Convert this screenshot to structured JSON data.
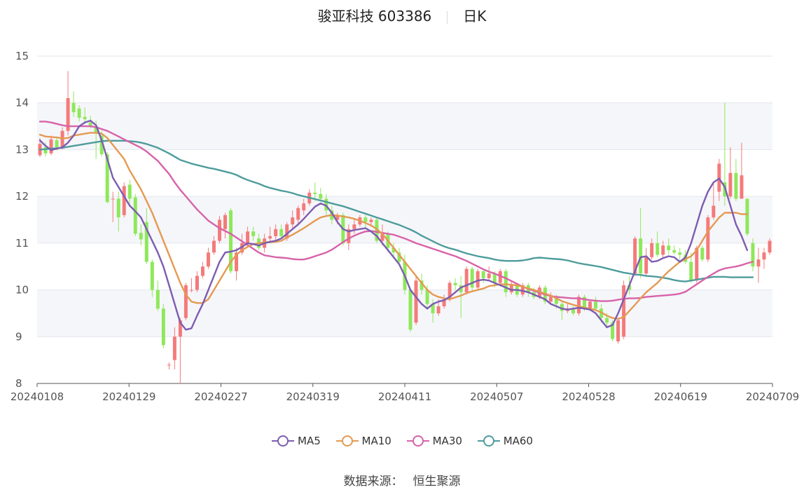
{
  "title": {
    "stock_name": "骏亚科技 603386",
    "period": "日K"
  },
  "source": {
    "label": "数据来源：",
    "value": "恒生聚源"
  },
  "colors": {
    "up": "#f47a7a",
    "down": "#8ee85a",
    "MA5": "#7d5cb0",
    "MA10": "#e49a52",
    "MA30": "#d862a8",
    "MA60": "#4e9c9c",
    "band": "#f5f6fa",
    "grid": "#e3e6ee"
  },
  "chart_data": {
    "type": "candlestick",
    "ylim": [
      8,
      15
    ],
    "yticks": [
      "8",
      "9",
      "10",
      "11",
      "12",
      "13",
      "14",
      "15"
    ],
    "xticks": [
      "20240108",
      "20240129",
      "20240227",
      "20240319",
      "20240411",
      "20240507",
      "20240528",
      "20240619",
      "20240709"
    ],
    "legend": [
      "MA5",
      "MA10",
      "MA30",
      "MA60"
    ],
    "legend_position": "bottom",
    "candles": [
      [
        12.88,
        13.12,
        12.84,
        13.25
      ],
      [
        13.05,
        12.92,
        12.85,
        13.15
      ],
      [
        12.92,
        13.22,
        12.88,
        13.3
      ],
      [
        13.2,
        13.05,
        12.98,
        13.28
      ],
      [
        13.05,
        13.4,
        13.0,
        13.48
      ],
      [
        13.4,
        14.1,
        13.3,
        14.68
      ],
      [
        14.0,
        13.8,
        13.7,
        14.25
      ],
      [
        13.88,
        13.68,
        13.6,
        13.95
      ],
      [
        13.7,
        13.65,
        13.55,
        13.9
      ],
      [
        13.58,
        13.5,
        13.45,
        13.72
      ],
      [
        13.5,
        13.35,
        12.8,
        13.62
      ],
      [
        13.3,
        12.9,
        12.85,
        13.4
      ],
      [
        12.9,
        11.88,
        11.85,
        12.95
      ],
      [
        11.95,
        11.95,
        11.45,
        12.1
      ],
      [
        11.95,
        11.55,
        11.25,
        12.1
      ],
      [
        11.6,
        12.22,
        11.55,
        12.3
      ],
      [
        12.25,
        11.95,
        11.85,
        12.35
      ],
      [
        11.98,
        11.2,
        11.15,
        12.05
      ],
      [
        11.22,
        11.08,
        10.95,
        11.4
      ],
      [
        11.45,
        10.6,
        10.55,
        11.75
      ],
      [
        10.6,
        10.0,
        9.85,
        10.65
      ],
      [
        10.0,
        9.6,
        9.55,
        10.2
      ],
      [
        9.6,
        8.82,
        8.75,
        9.7
      ],
      [
        8.4,
        8.4,
        8.3,
        8.45
      ],
      [
        8.5,
        9.0,
        8.3,
        9.2
      ],
      [
        9.0,
        9.35,
        8.0,
        9.4
      ],
      [
        9.4,
        10.1,
        9.35,
        10.15
      ],
      [
        10.0,
        10.0,
        9.95,
        10.25
      ],
      [
        10.0,
        10.3,
        9.95,
        10.4
      ],
      [
        10.3,
        10.5,
        10.25,
        10.6
      ],
      [
        10.5,
        10.8,
        10.45,
        10.9
      ],
      [
        10.8,
        11.05,
        10.75,
        11.15
      ],
      [
        11.05,
        11.5,
        11.0,
        11.58
      ],
      [
        11.3,
        11.6,
        11.1,
        11.65
      ],
      [
        11.7,
        10.4,
        10.35,
        11.75
      ],
      [
        10.4,
        10.8,
        10.2,
        10.9
      ],
      [
        10.8,
        11.0,
        10.75,
        11.2
      ],
      [
        11.0,
        11.25,
        10.9,
        11.35
      ],
      [
        11.25,
        11.15,
        11.05,
        11.35
      ],
      [
        11.1,
        10.9,
        10.85,
        11.2
      ],
      [
        10.9,
        11.1,
        10.8,
        11.2
      ],
      [
        11.1,
        11.15,
        11.0,
        11.35
      ],
      [
        11.15,
        11.3,
        11.05,
        11.4
      ],
      [
        11.3,
        11.15,
        11.1,
        11.4
      ],
      [
        11.1,
        11.4,
        11.05,
        11.45
      ],
      [
        11.4,
        11.55,
        11.3,
        11.7
      ],
      [
        11.5,
        11.75,
        11.4,
        11.8
      ],
      [
        11.7,
        11.85,
        11.6,
        11.95
      ],
      [
        11.85,
        12.08,
        11.8,
        12.15
      ],
      [
        12.08,
        12.05,
        11.9,
        12.3
      ],
      [
        12.05,
        11.95,
        11.9,
        12.18
      ],
      [
        11.95,
        11.7,
        11.6,
        12.05
      ],
      [
        11.7,
        11.5,
        11.4,
        11.8
      ],
      [
        11.5,
        11.6,
        11.4,
        11.65
      ],
      [
        11.6,
        11.0,
        10.95,
        11.65
      ],
      [
        11.0,
        11.3,
        10.85,
        11.4
      ],
      [
        11.3,
        11.4,
        11.2,
        11.5
      ],
      [
        11.4,
        11.55,
        11.35,
        11.6
      ],
      [
        11.55,
        11.45,
        11.3,
        11.6
      ],
      [
        11.45,
        11.5,
        11.35,
        11.55
      ],
      [
        11.5,
        11.05,
        11.0,
        11.55
      ],
      [
        11.05,
        11.2,
        10.95,
        11.4
      ],
      [
        11.2,
        10.9,
        10.8,
        11.25
      ],
      [
        10.9,
        10.8,
        10.7,
        11.0
      ],
      [
        10.8,
        10.6,
        10.55,
        10.9
      ],
      [
        10.6,
        10.0,
        9.9,
        10.75
      ],
      [
        10.0,
        9.15,
        9.1,
        10.05
      ],
      [
        9.3,
        10.2,
        9.25,
        10.3
      ],
      [
        10.2,
        10.0,
        9.9,
        10.35
      ],
      [
        10.0,
        9.7,
        9.6,
        10.1
      ],
      [
        9.7,
        9.5,
        9.3,
        9.8
      ],
      [
        9.5,
        9.65,
        9.45,
        9.8
      ],
      [
        9.65,
        9.8,
        9.6,
        9.9
      ],
      [
        9.8,
        10.15,
        9.75,
        10.2
      ],
      [
        10.15,
        10.1,
        10.0,
        10.25
      ],
      [
        10.1,
        9.95,
        9.4,
        10.3
      ],
      [
        9.95,
        10.45,
        9.9,
        10.5
      ],
      [
        10.45,
        10.05,
        10.0,
        10.5
      ],
      [
        10.05,
        10.4,
        10.0,
        10.45
      ],
      [
        10.4,
        10.25,
        10.15,
        10.45
      ],
      [
        10.25,
        10.35,
        10.2,
        10.5
      ],
      [
        10.35,
        10.15,
        10.05,
        10.4
      ],
      [
        10.15,
        10.4,
        10.1,
        10.45
      ],
      [
        10.4,
        9.95,
        9.85,
        10.45
      ],
      [
        9.95,
        10.1,
        9.9,
        10.2
      ],
      [
        10.1,
        9.9,
        9.85,
        10.15
      ],
      [
        9.9,
        10.1,
        9.85,
        10.15
      ],
      [
        10.1,
        9.95,
        9.85,
        10.15
      ],
      [
        9.95,
        9.85,
        9.8,
        10.05
      ],
      [
        9.85,
        10.05,
        9.8,
        10.1
      ],
      [
        10.05,
        9.75,
        9.7,
        10.1
      ],
      [
        9.75,
        9.85,
        9.7,
        9.95
      ],
      [
        9.85,
        9.7,
        9.6,
        9.9
      ],
      [
        9.7,
        9.55,
        9.35,
        9.75
      ],
      [
        9.55,
        9.6,
        9.5,
        9.7
      ],
      [
        9.6,
        9.5,
        9.45,
        9.65
      ],
      [
        9.5,
        9.85,
        9.45,
        9.9
      ],
      [
        9.85,
        9.6,
        9.55,
        9.9
      ],
      [
        9.6,
        9.75,
        9.55,
        9.8
      ],
      [
        9.75,
        9.6,
        9.55,
        9.85
      ],
      [
        9.6,
        9.4,
        9.3,
        9.7
      ],
      [
        9.4,
        9.3,
        9.2,
        9.5
      ],
      [
        9.3,
        8.95,
        8.9,
        9.35
      ],
      [
        8.9,
        9.35,
        8.85,
        9.4
      ],
      [
        9.0,
        10.1,
        8.95,
        10.2
      ],
      [
        10.1,
        10.0,
        9.9,
        10.3
      ],
      [
        10.35,
        11.1,
        10.3,
        11.15
      ],
      [
        11.1,
        10.35,
        10.25,
        11.75
      ],
      [
        10.35,
        10.7,
        10.3,
        10.9
      ],
      [
        10.7,
        11.0,
        10.65,
        11.1
      ],
      [
        11.0,
        10.75,
        10.7,
        11.25
      ],
      [
        10.75,
        10.95,
        10.7,
        11.05
      ],
      [
        10.95,
        10.85,
        10.75,
        11.1
      ],
      [
        10.85,
        10.8,
        10.75,
        10.95
      ],
      [
        10.8,
        10.75,
        10.6,
        10.9
      ],
      [
        10.75,
        10.6,
        10.55,
        10.85
      ],
      [
        10.6,
        10.2,
        10.15,
        10.8
      ],
      [
        10.2,
        10.9,
        10.15,
        10.95
      ],
      [
        10.9,
        10.65,
        10.6,
        10.95
      ],
      [
        10.65,
        11.55,
        10.6,
        11.6
      ],
      [
        11.55,
        11.8,
        11.5,
        12.3
      ],
      [
        12.1,
        12.7,
        11.9,
        12.8
      ],
      [
        12.3,
        12.0,
        11.8,
        14.0
      ],
      [
        12.0,
        12.5,
        11.95,
        13.05
      ],
      [
        12.5,
        11.95,
        11.9,
        12.8
      ],
      [
        11.95,
        12.45,
        11.95,
        13.15
      ],
      [
        11.95,
        11.2,
        11.15,
        11.95
      ],
      [
        11.0,
        10.5,
        10.4,
        11.1
      ],
      [
        10.5,
        10.65,
        10.15,
        10.9
      ],
      [
        10.65,
        10.8,
        10.45,
        10.9
      ],
      [
        10.8,
        11.05,
        10.75,
        11.1
      ]
    ],
    "ma": {
      "MA5": [
        13.2,
        13.08,
        12.99,
        13.02,
        13.05,
        13.15,
        13.3,
        13.5,
        13.58,
        13.62,
        13.52,
        13.2,
        12.8,
        12.4,
        12.2,
        12.0,
        11.8,
        11.68,
        11.55,
        11.3,
        11.05,
        10.8,
        10.5,
        10.1,
        9.7,
        9.3,
        9.15,
        9.18,
        9.45,
        9.7,
        10.0,
        10.3,
        10.6,
        10.8,
        10.82,
        10.85,
        10.92,
        11.0,
        10.98,
        10.95,
        11.0,
        11.03,
        11.05,
        11.1,
        11.2,
        11.3,
        11.4,
        11.52,
        11.65,
        11.78,
        11.85,
        11.8,
        11.65,
        11.45,
        11.3,
        11.25,
        11.28,
        11.3,
        11.32,
        11.25,
        11.15,
        11.0,
        10.85,
        10.7,
        10.55,
        10.3,
        10.0,
        9.85,
        9.7,
        9.6,
        9.7,
        9.75,
        9.78,
        9.85,
        9.95,
        10.05,
        10.1,
        10.15,
        10.2,
        10.22,
        10.2,
        10.15,
        10.1,
        10.05,
        10.0,
        10.0,
        9.98,
        9.95,
        9.9,
        9.85,
        9.8,
        9.7,
        9.65,
        9.6,
        9.58,
        9.6,
        9.62,
        9.6,
        9.58,
        9.5,
        9.35,
        9.2,
        9.25,
        9.5,
        9.8,
        10.1,
        10.4,
        10.7,
        10.72,
        10.6,
        10.62,
        10.68,
        10.72,
        10.7,
        10.6,
        10.7,
        11.0,
        11.4,
        11.8,
        12.1,
        12.3,
        12.38,
        12.2,
        11.8,
        11.4,
        11.15,
        10.85
      ],
      "MA10": [
        13.32,
        13.28,
        13.27,
        13.26,
        13.24,
        13.25,
        13.3,
        13.32,
        13.34,
        13.36,
        13.36,
        13.34,
        13.25,
        13.1,
        12.95,
        12.8,
        12.55,
        12.35,
        12.15,
        11.9,
        11.65,
        11.35,
        11.05,
        10.75,
        10.45,
        10.15,
        9.9,
        9.75,
        9.72,
        9.72,
        9.8,
        10.0,
        10.2,
        10.4,
        10.6,
        10.75,
        10.85,
        10.92,
        10.98,
        11.0,
        11.02,
        11.02,
        11.03,
        11.05,
        11.12,
        11.18,
        11.25,
        11.32,
        11.4,
        11.48,
        11.55,
        11.58,
        11.6,
        11.59,
        11.57,
        11.55,
        11.52,
        11.48,
        11.43,
        11.38,
        11.3,
        11.2,
        11.05,
        10.9,
        10.75,
        10.6,
        10.45,
        10.3,
        10.15,
        10.0,
        9.9,
        9.85,
        9.82,
        9.8,
        9.84,
        9.88,
        9.93,
        9.97,
        10.0,
        10.03,
        10.08,
        10.1,
        10.12,
        10.12,
        10.11,
        10.1,
        10.07,
        10.03,
        10.0,
        9.96,
        9.92,
        9.88,
        9.82,
        9.76,
        9.72,
        9.68,
        9.65,
        9.62,
        9.6,
        9.57,
        9.52,
        9.45,
        9.4,
        9.38,
        9.42,
        9.55,
        9.68,
        9.82,
        9.95,
        10.05,
        10.15,
        10.28,
        10.4,
        10.5,
        10.6,
        10.66,
        10.72,
        10.85,
        11.05,
        11.25,
        11.4,
        11.55,
        11.65,
        11.65,
        11.65,
        11.62,
        11.62
      ],
      "MA30": [
        13.6,
        13.6,
        13.58,
        13.55,
        13.52,
        13.5,
        13.5,
        13.5,
        13.5,
        13.5,
        13.48,
        13.44,
        13.4,
        13.34,
        13.28,
        13.22,
        13.16,
        13.1,
        13.04,
        12.96,
        12.86,
        12.76,
        12.62,
        12.48,
        12.3,
        12.14,
        12.0,
        11.86,
        11.72,
        11.6,
        11.48,
        11.4,
        11.32,
        11.26,
        11.2,
        11.12,
        11.04,
        10.96,
        10.88,
        10.8,
        10.74,
        10.72,
        10.7,
        10.69,
        10.68,
        10.66,
        10.65,
        10.65,
        10.68,
        10.72,
        10.76,
        10.8,
        10.86,
        10.94,
        11.02,
        11.1,
        11.16,
        11.21,
        11.25,
        11.26,
        11.24,
        11.22,
        11.2,
        11.18,
        11.14,
        11.1,
        11.05,
        11.0,
        10.96,
        10.92,
        10.88,
        10.84,
        10.8,
        10.76,
        10.72,
        10.67,
        10.62,
        10.56,
        10.5,
        10.44,
        10.39,
        10.35,
        10.3,
        10.25,
        10.19,
        10.13,
        10.07,
        10.02,
        9.98,
        9.94,
        9.9,
        9.87,
        9.85,
        9.84,
        9.83,
        9.82,
        9.82,
        9.8,
        9.78,
        9.77,
        9.76,
        9.76,
        9.77,
        9.79,
        9.81,
        9.82,
        9.82,
        9.83,
        9.85,
        9.86,
        9.87,
        9.88,
        9.89,
        9.9,
        9.92,
        9.96,
        10.04,
        10.12,
        10.2,
        10.28,
        10.35,
        10.42,
        10.46,
        10.48,
        10.5,
        10.53,
        10.57,
        10.6
      ],
      "MA60": [
        13.0,
        13.01,
        13.02,
        13.03,
        13.04,
        13.06,
        13.08,
        13.1,
        13.12,
        13.14,
        13.16,
        13.18,
        13.19,
        13.19,
        13.19,
        13.19,
        13.18,
        13.17,
        13.15,
        13.12,
        13.08,
        13.04,
        12.98,
        12.92,
        12.85,
        12.78,
        12.74,
        12.7,
        12.67,
        12.64,
        12.61,
        12.59,
        12.56,
        12.53,
        12.5,
        12.46,
        12.4,
        12.35,
        12.31,
        12.27,
        12.22,
        12.18,
        12.15,
        12.12,
        12.1,
        12.07,
        12.03,
        12.0,
        11.97,
        11.94,
        11.91,
        11.88,
        11.85,
        11.82,
        11.79,
        11.75,
        11.71,
        11.67,
        11.63,
        11.59,
        11.55,
        11.51,
        11.47,
        11.43,
        11.39,
        11.34,
        11.29,
        11.23,
        11.16,
        11.1,
        11.04,
        10.98,
        10.93,
        10.89,
        10.86,
        10.82,
        10.78,
        10.75,
        10.72,
        10.7,
        10.68,
        10.65,
        10.63,
        10.62,
        10.62,
        10.62,
        10.63,
        10.65,
        10.68,
        10.69,
        10.68,
        10.67,
        10.66,
        10.65,
        10.63,
        10.6,
        10.57,
        10.55,
        10.53,
        10.51,
        10.49,
        10.46,
        10.43,
        10.4,
        10.37,
        10.35,
        10.33,
        10.32,
        10.3,
        10.29,
        10.28,
        10.26,
        10.24,
        10.21,
        10.19,
        10.18,
        10.2,
        10.22,
        10.24,
        10.26,
        10.28,
        10.28,
        10.28,
        10.27,
        10.27,
        10.27,
        10.27,
        10.27
      ]
    }
  }
}
